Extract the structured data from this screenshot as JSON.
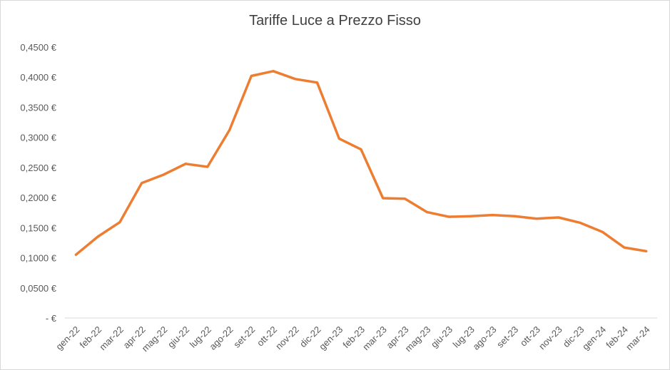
{
  "chart_data": {
    "type": "line",
    "title": "Tariffe Luce a Prezzo Fisso",
    "xlabel": "",
    "ylabel": "",
    "ylim": [
      0,
      0.45
    ],
    "yticks": [
      {
        "value": 0,
        "label": "-  €"
      },
      {
        "value": 0.05,
        "label": "0,0500 €"
      },
      {
        "value": 0.1,
        "label": "0,1000 €"
      },
      {
        "value": 0.15,
        "label": "0,1500 €"
      },
      {
        "value": 0.2,
        "label": "0,2000 €"
      },
      {
        "value": 0.25,
        "label": "0,2500 €"
      },
      {
        "value": 0.3,
        "label": "0,3000 €"
      },
      {
        "value": 0.35,
        "label": "0,3500 €"
      },
      {
        "value": 0.4,
        "label": "0,4000 €"
      },
      {
        "value": 0.45,
        "label": "0,4500 €"
      }
    ],
    "grid": false,
    "legend": "none",
    "categories": [
      "gen-22",
      "feb-22",
      "mar-22",
      "apr-22",
      "mag-22",
      "giu-22",
      "lug-22",
      "ago-22",
      "set-22",
      "ott-22",
      "nov-22",
      "dic-22",
      "gen-23",
      "feb-23",
      "mar-23",
      "apr-23",
      "mag-23",
      "giu-23",
      "lug-23",
      "ago-23",
      "set-23",
      "ott-23",
      "nov-23",
      "dic-23",
      "gen-24",
      "feb-24",
      "mar-24"
    ],
    "series": [
      {
        "color": "#ed7d31",
        "values": [
          0.105,
          0.135,
          0.159,
          0.224,
          0.238,
          0.256,
          0.251,
          0.312,
          0.402,
          0.41,
          0.397,
          0.391,
          0.298,
          0.28,
          0.199,
          0.198,
          0.176,
          0.168,
          0.169,
          0.171,
          0.169,
          0.165,
          0.167,
          0.158,
          0.143,
          0.117,
          0.111
        ]
      }
    ]
  }
}
